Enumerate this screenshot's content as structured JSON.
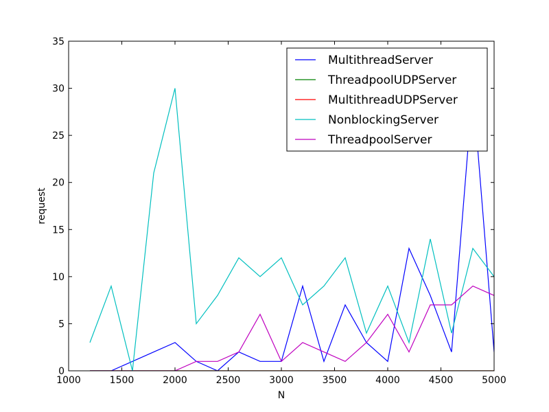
{
  "chart_data": {
    "type": "line",
    "title": "",
    "xlabel": "N",
    "ylabel": "request",
    "xlim": [
      1000,
      5000
    ],
    "ylim": [
      0,
      35
    ],
    "xticks": [
      1000,
      1500,
      2000,
      2500,
      3000,
      3500,
      4000,
      4500,
      5000
    ],
    "yticks": [
      0,
      5,
      10,
      15,
      20,
      25,
      30,
      35
    ],
    "grid": false,
    "legend_position": "top-right",
    "x": [
      1200,
      1400,
      1600,
      1800,
      2000,
      2200,
      2400,
      2600,
      2800,
      3000,
      3200,
      3400,
      3600,
      3800,
      4000,
      4200,
      4400,
      4600,
      4800,
      5000
    ],
    "series": [
      {
        "name": "MultithreadServer",
        "color": "#0000ff",
        "values": [
          0,
          0,
          1,
          2,
          3,
          1,
          0,
          2,
          1,
          1,
          9,
          1,
          7,
          3,
          1,
          13,
          8,
          2,
          30,
          2
        ]
      },
      {
        "name": "ThreadpoolUDPServer",
        "color": "#008000",
        "values": [
          0,
          0,
          0,
          0,
          0,
          0,
          0,
          0,
          0,
          0,
          0,
          0,
          0,
          0,
          0,
          0,
          0,
          0,
          0,
          0
        ]
      },
      {
        "name": "MultithreadUDPServer",
        "color": "#ff0000",
        "values": [
          0,
          0,
          0,
          0,
          0,
          0,
          0,
          0,
          0,
          0,
          0,
          0,
          0,
          0,
          0,
          0,
          0,
          0,
          0,
          0
        ]
      },
      {
        "name": "NonblockingServer",
        "color": "#00bfbf",
        "values": [
          3,
          9,
          0,
          21,
          30,
          5,
          8,
          12,
          10,
          12,
          7,
          9,
          12,
          4,
          9,
          3,
          14,
          4,
          13,
          10
        ]
      },
      {
        "name": "ThreadpoolServer",
        "color": "#bf00bf",
        "values": [
          0,
          0,
          0,
          0,
          0,
          1,
          1,
          2,
          6,
          1,
          3,
          2,
          1,
          3,
          6,
          2,
          7,
          7,
          9,
          8
        ]
      }
    ]
  }
}
